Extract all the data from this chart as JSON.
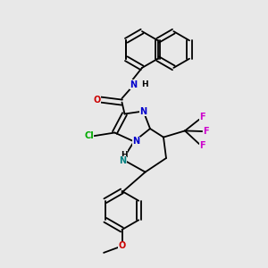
{
  "background_color": "#e8e8e8",
  "colors": {
    "C": "#000000",
    "N": "#0000cc",
    "O": "#cc0000",
    "Cl": "#00aa00",
    "F": "#cc00cc",
    "NH": "#008080",
    "bond": "#000000"
  },
  "lw": 1.3,
  "fs": 7.0
}
